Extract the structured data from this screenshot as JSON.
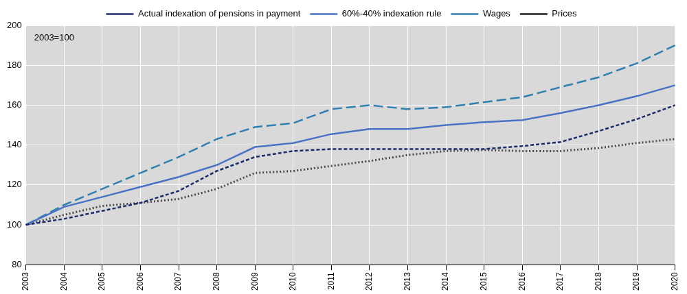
{
  "chart_data": {
    "type": "line",
    "annotation": "2003=100",
    "categories": [
      "2003",
      "2004",
      "2005",
      "2006",
      "2007",
      "2008",
      "2009",
      "2010",
      "2011",
      "2012",
      "2013",
      "2014",
      "2015",
      "2016",
      "2017",
      "2018",
      "2019",
      "2020"
    ],
    "series": [
      {
        "name": "Actual indexation of pensions in payment",
        "color": "#1b2a6b",
        "line_style": "dashed",
        "values": [
          100,
          103,
          107,
          111,
          117,
          127,
          134,
          137,
          138,
          138,
          138,
          138,
          138,
          139.5,
          141.5,
          147,
          153,
          160
        ]
      },
      {
        "name": "60%-40% indexation rule",
        "color": "#4a72c4",
        "line_style": "solid",
        "values": [
          100,
          109,
          114,
          119,
          124,
          130,
          139,
          141,
          145.5,
          148,
          148,
          150,
          151.5,
          152.5,
          156,
          160,
          164.5,
          170
        ]
      },
      {
        "name": "Wages",
        "color": "#2f7fb0",
        "line_style": "long_dashed",
        "values": [
          100,
          110,
          118,
          126,
          134,
          143,
          149,
          151,
          158,
          160,
          158,
          159,
          161.5,
          164,
          169,
          174,
          181,
          190
        ]
      },
      {
        "name": "Prices",
        "color": "#4a4a4a",
        "line_style": "dotted",
        "values": [
          100,
          105,
          109.5,
          111,
          113,
          118,
          126,
          127,
          129.5,
          132,
          135,
          137,
          137.5,
          137,
          137,
          138.5,
          141,
          143
        ]
      }
    ],
    "ylim": [
      80,
      200
    ],
    "yticks": [
      80,
      100,
      120,
      140,
      160,
      180,
      200
    ],
    "grid": true,
    "legend": "top"
  }
}
